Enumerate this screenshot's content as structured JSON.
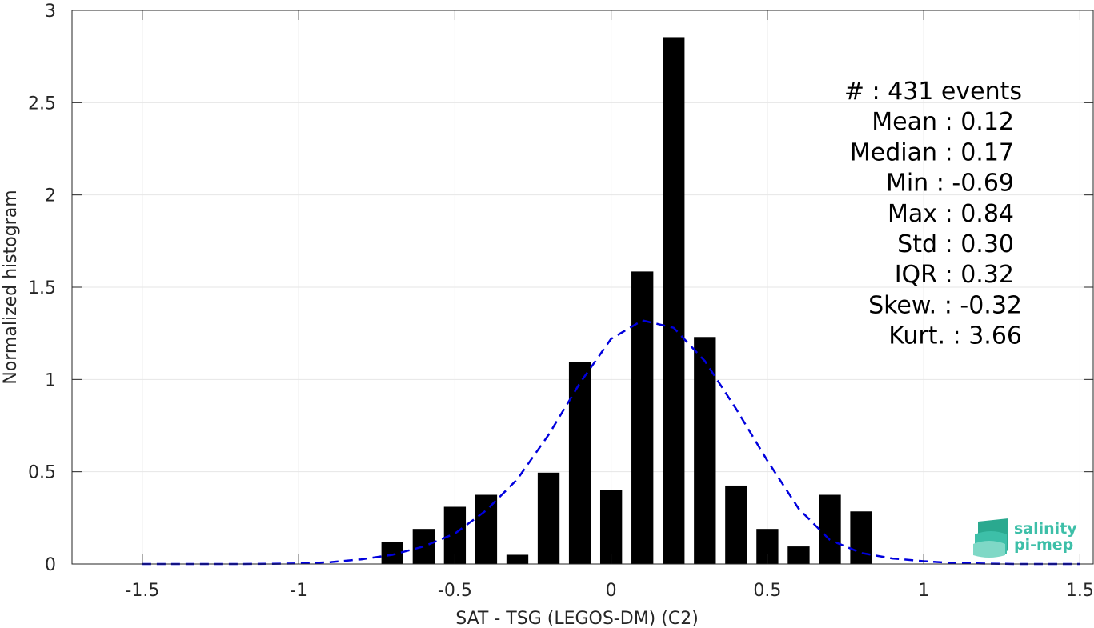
{
  "chart_data": {
    "type": "bar",
    "xlabel": "SAT - TSG (LEGOS-DM) (C2)",
    "ylabel": "Normalized histogram",
    "xlim": [
      -1.5,
      1.5
    ],
    "ylim": [
      0,
      3
    ],
    "xticks": [
      -1.5,
      -1,
      -0.5,
      0,
      0.5,
      1,
      1.5
    ],
    "xtick_labels": [
      "-1.5",
      "-1",
      "-0.5",
      "0",
      "0.5",
      "1",
      "1.5"
    ],
    "yticks": [
      0,
      0.5,
      1,
      1.5,
      2,
      2.5,
      3
    ],
    "ytick_labels": [
      "0",
      "0.5",
      "1",
      "1.5",
      "2",
      "2.5",
      "3"
    ],
    "grid": true,
    "bar_color": "#000000",
    "bins": {
      "centers": [
        -0.7,
        -0.6,
        -0.5,
        -0.4,
        -0.3,
        -0.2,
        -0.1,
        0.0,
        0.1,
        0.2,
        0.3,
        0.4,
        0.5,
        0.6,
        0.7,
        0.8
      ],
      "values": [
        0.12,
        0.19,
        0.31,
        0.375,
        0.05,
        0.495,
        1.095,
        0.4,
        1.585,
        2.855,
        1.23,
        0.425,
        0.19,
        0.095,
        0.375,
        0.285
      ],
      "width": 0.07
    },
    "fit_curve": {
      "name": "",
      "style": "dashed",
      "color": "#0000dd",
      "x": [
        -1.5,
        -1.4,
        -1.3,
        -1.2,
        -1.1,
        -1.0,
        -0.9,
        -0.8,
        -0.7,
        -0.6,
        -0.5,
        -0.4,
        -0.3,
        -0.2,
        -0.1,
        0.0,
        0.1,
        0.2,
        0.3,
        0.4,
        0.5,
        0.6,
        0.7,
        0.8,
        0.9,
        1.0,
        1.1,
        1.2,
        1.3,
        1.4,
        1.5
      ],
      "y": [
        0.0,
        0.0,
        0.0,
        0.0,
        0.001,
        0.003,
        0.01,
        0.025,
        0.05,
        0.095,
        0.165,
        0.29,
        0.46,
        0.7,
        0.98,
        1.22,
        1.32,
        1.28,
        1.1,
        0.84,
        0.56,
        0.3,
        0.13,
        0.06,
        0.03,
        0.015,
        0.005,
        0.002,
        0.0,
        0.0,
        0.0
      ]
    },
    "annotations": [
      "#  : 431 events",
      "Mean : 0.12",
      "Median : 0.17",
      "Min : -0.69",
      "Max : 0.84",
      "Std : 0.30",
      "IQR : 0.32",
      "Skew. : -0.32",
      "Kurt. : 3.66"
    ]
  },
  "logo": {
    "line1": "salinity",
    "line2": "pi-mep"
  }
}
